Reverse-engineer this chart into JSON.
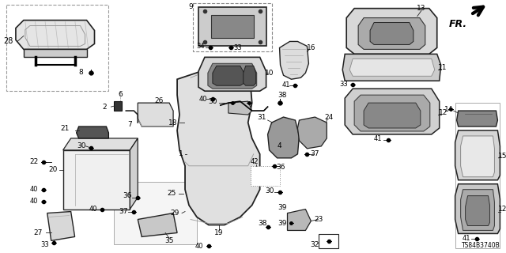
{
  "bg_color": "#ffffff",
  "diagram_code": "TS84B3740B",
  "fig_w": 6.4,
  "fig_h": 3.2,
  "dpi": 100,
  "label_font": 6.5,
  "label_color": "#000000",
  "line_color": "#222222",
  "part_fill": "#e8e8e8",
  "part_edge": "#222222",
  "dash_color": "#777777"
}
